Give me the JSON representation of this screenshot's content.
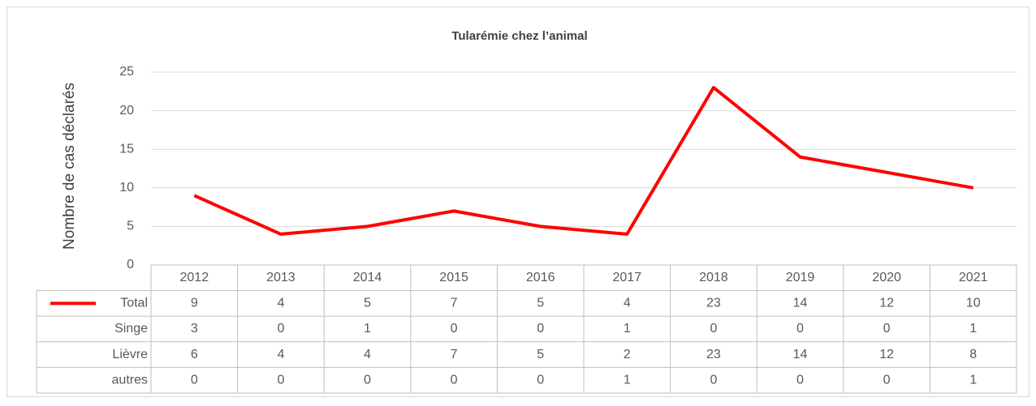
{
  "chart_data": {
    "type": "line",
    "title": "Tularémie chez l’animal",
    "y_label": "Nombre de cas déclarés",
    "categories": [
      "2012",
      "2013",
      "2014",
      "2015",
      "2016",
      "2017",
      "2018",
      "2019",
      "2020",
      "2021"
    ],
    "series": [
      {
        "name": "Total",
        "color": "#ff0000",
        "values": [
          9,
          4,
          5,
          7,
          5,
          4,
          23,
          14,
          12,
          10
        ]
      },
      {
        "name": "Singe",
        "values": [
          3,
          0,
          1,
          0,
          0,
          1,
          0,
          0,
          0,
          1
        ]
      },
      {
        "name": "Lièvre",
        "values": [
          6,
          4,
          4,
          7,
          5,
          2,
          23,
          14,
          12,
          8
        ]
      },
      {
        "name": "autres",
        "values": [
          0,
          0,
          0,
          0,
          0,
          1,
          0,
          0,
          0,
          1
        ]
      }
    ],
    "ylim": [
      0,
      25
    ],
    "yticks": [
      0,
      5,
      10,
      15,
      20,
      25
    ],
    "grid": true
  }
}
